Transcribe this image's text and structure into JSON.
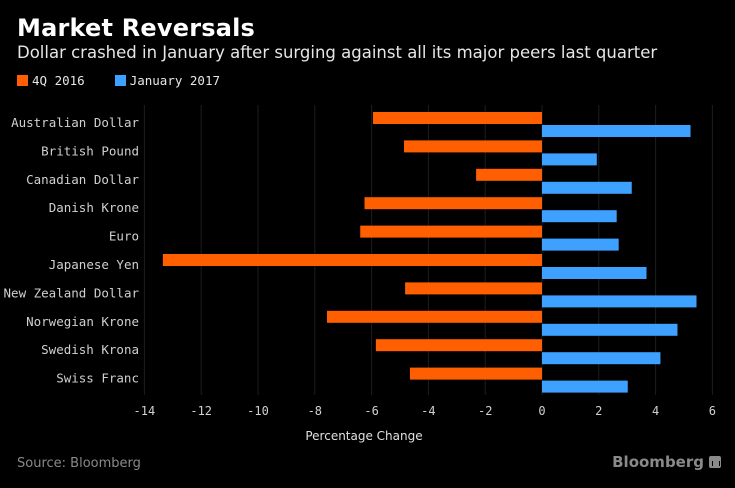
{
  "header": {
    "title": "Market Reversals",
    "subtitle": "Dollar crashed in January after surging against all its major peers last quarter"
  },
  "footer": {
    "source": "Source: Bloomberg",
    "brand": "Bloomberg",
    "brand_icon": "bloomberg-chart-icon"
  },
  "colors": {
    "background": "#000000",
    "series_4q2016": "#ff5f00",
    "series_jan2017": "#3ea1ff",
    "gridline": "#1e1e1e",
    "axis_text": "#d0d0d0"
  },
  "chart_data": {
    "type": "bar",
    "orientation": "horizontal",
    "title": "Market Reversals",
    "subtitle": "Dollar crashed in January after surging against all its major peers last quarter",
    "xlabel": "Percentage Change",
    "ylabel": "",
    "xlim": [
      -14,
      6.5
    ],
    "xticks": [
      -14,
      -12,
      -10,
      -8,
      -6,
      -4,
      -2,
      0,
      2,
      4,
      6
    ],
    "grid": true,
    "legend_position": "top-left",
    "categories": [
      "Australian Dollar",
      "British Pound",
      "Canadian Dollar",
      "Danish Krone",
      "Euro",
      "Japanese Yen",
      "New Zealand Dollar",
      "Norwegian Krone",
      "Swedish Krona",
      "Swiss Franc"
    ],
    "series": [
      {
        "name": "4Q 2016",
        "color": "#ff5f00",
        "values": [
          -5.95,
          -4.86,
          -2.32,
          -6.25,
          -6.4,
          -13.35,
          -4.82,
          -7.57,
          -5.85,
          -4.65
        ]
      },
      {
        "name": "January 2017",
        "color": "#3ea1ff",
        "values": [
          5.23,
          1.93,
          3.16,
          2.63,
          2.7,
          3.68,
          5.44,
          4.77,
          4.17,
          3.02
        ]
      }
    ],
    "source": "Source: Bloomberg"
  }
}
